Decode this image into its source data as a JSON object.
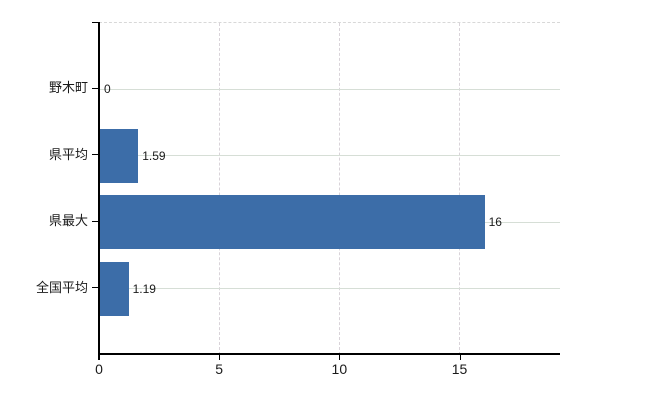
{
  "chart_data": {
    "type": "bar",
    "orientation": "horizontal",
    "title": "",
    "xlabel": "",
    "ylabel": "",
    "categories": [
      "野木町",
      "県平均",
      "県最大",
      "全国平均"
    ],
    "values": [
      0,
      1.59,
      16,
      1.19
    ],
    "value_labels": [
      "0",
      "1.59",
      "16",
      "1.19"
    ],
    "x_ticks": [
      0,
      5,
      10,
      15
    ],
    "x_tick_labels": [
      "0",
      "5",
      "10",
      "15"
    ],
    "xlim": [
      0,
      19.18
    ],
    "grid": "horizontal-solid, vertical-dashed, top-border-dashed",
    "legend_position": "none",
    "colors": {
      "bar": "#3c6da8",
      "h_gridline": "#d6ded6",
      "v_gridline": "#d9d3d9",
      "top_border": "#d8d8d8",
      "axis": "#000000",
      "text": "#1a1a1a"
    }
  }
}
